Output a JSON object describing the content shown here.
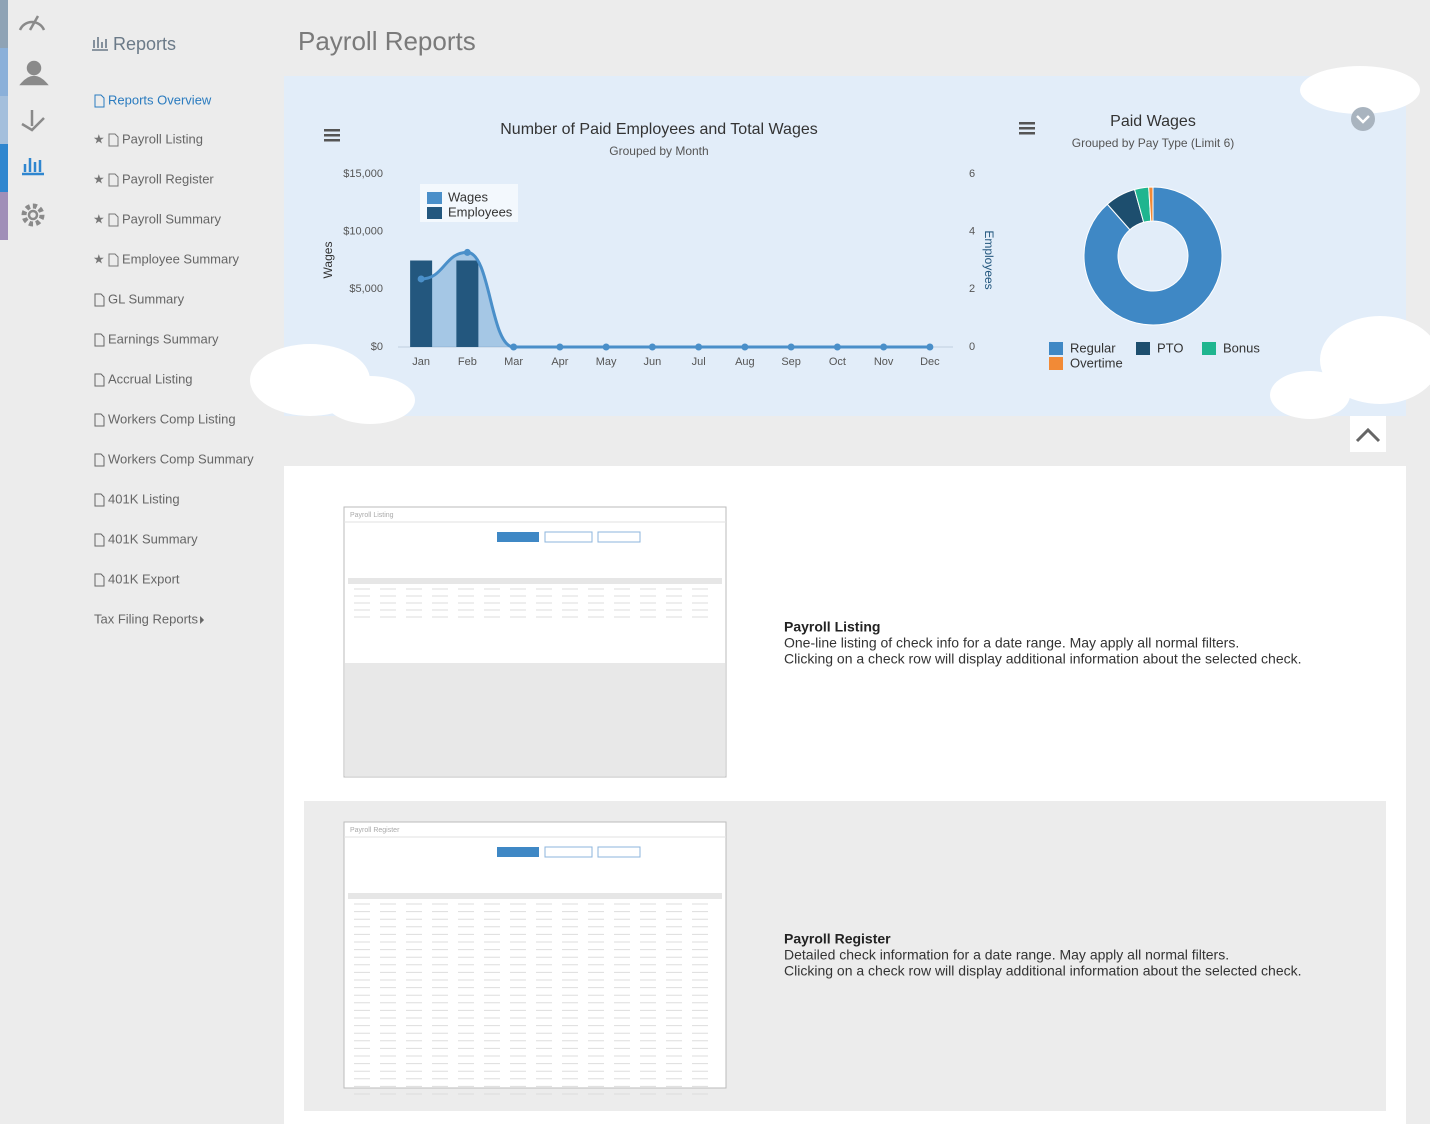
{
  "sidebar": {
    "title": "Reports",
    "items": [
      {
        "label": "Reports Overview",
        "active": true
      },
      {
        "label": "Payroll Listing",
        "starred": true
      },
      {
        "label": "Payroll Register",
        "starred": true
      },
      {
        "label": "Payroll Summary",
        "starred": true
      },
      {
        "label": "Employee Summary",
        "starred": true
      },
      {
        "label": "GL Summary"
      },
      {
        "label": "Earnings Summary"
      },
      {
        "label": "Accrual Listing"
      },
      {
        "label": "Workers Comp Listing"
      },
      {
        "label": "Workers Comp Summary"
      },
      {
        "label": "401K Listing"
      },
      {
        "label": "401K Summary"
      },
      {
        "label": "401K Export"
      },
      {
        "label": "Tax Filing Reports",
        "submenu": true
      }
    ]
  },
  "page_title": "Payroll Reports",
  "chart_data": [
    {
      "type": "combo",
      "title": "Number of Paid Employees and Total Wages",
      "subtitle": "Grouped by Month",
      "y_label": "Wages",
      "y2_label": "Employees",
      "categories": [
        "Jan",
        "Feb",
        "Mar",
        "Apr",
        "May",
        "Jun",
        "Jul",
        "Aug",
        "Sep",
        "Oct",
        "Nov",
        "Dec"
      ],
      "series": [
        {
          "name": "Wages",
          "type": "areaspline",
          "axis": "y",
          "color": "#4a8fc9",
          "values": [
            5900,
            8200,
            0,
            0,
            0,
            0,
            0,
            0,
            0,
            0,
            0,
            0
          ]
        },
        {
          "name": "Employees",
          "type": "column",
          "axis": "y2",
          "color": "#23577e",
          "values": [
            3,
            3,
            0,
            0,
            0,
            0,
            0,
            0,
            0,
            0,
            0,
            0
          ]
        }
      ],
      "ylim": [
        0,
        15000
      ],
      "yticks": [
        {
          "value": 0,
          "label": "$0"
        },
        {
          "value": 5000,
          "label": "$5,000"
        },
        {
          "value": 10000,
          "label": "$10,000"
        },
        {
          "value": 15000,
          "label": "$15,000"
        }
      ],
      "y2lim": [
        0,
        6
      ],
      "y2ticks": [
        0,
        2,
        4,
        6
      ],
      "grid": false
    },
    {
      "type": "donut",
      "title": "Paid Wages",
      "subtitle": "Grouped by Pay Type (Limit 6)",
      "categories": [
        "Regular",
        "PTO",
        "Bonus",
        "Overtime"
      ],
      "values": [
        88.5,
        7.2,
        3.3,
        1.0
      ],
      "colors": [
        "#3f88c5",
        "#1d4e6e",
        "#1fb58f",
        "#f28a36"
      ]
    }
  ],
  "reports": [
    {
      "title": "Payroll Listing",
      "description": [
        "One-line listing of check info for a date range. May apply all normal filters.",
        "Clicking on a check row will display additional information about the selected check."
      ]
    },
    {
      "title": "Payroll Register",
      "description": [
        "Detailed check information for a date range. May apply all normal filters.",
        "Clicking on a check row will display additional information about the selected check."
      ]
    }
  ]
}
